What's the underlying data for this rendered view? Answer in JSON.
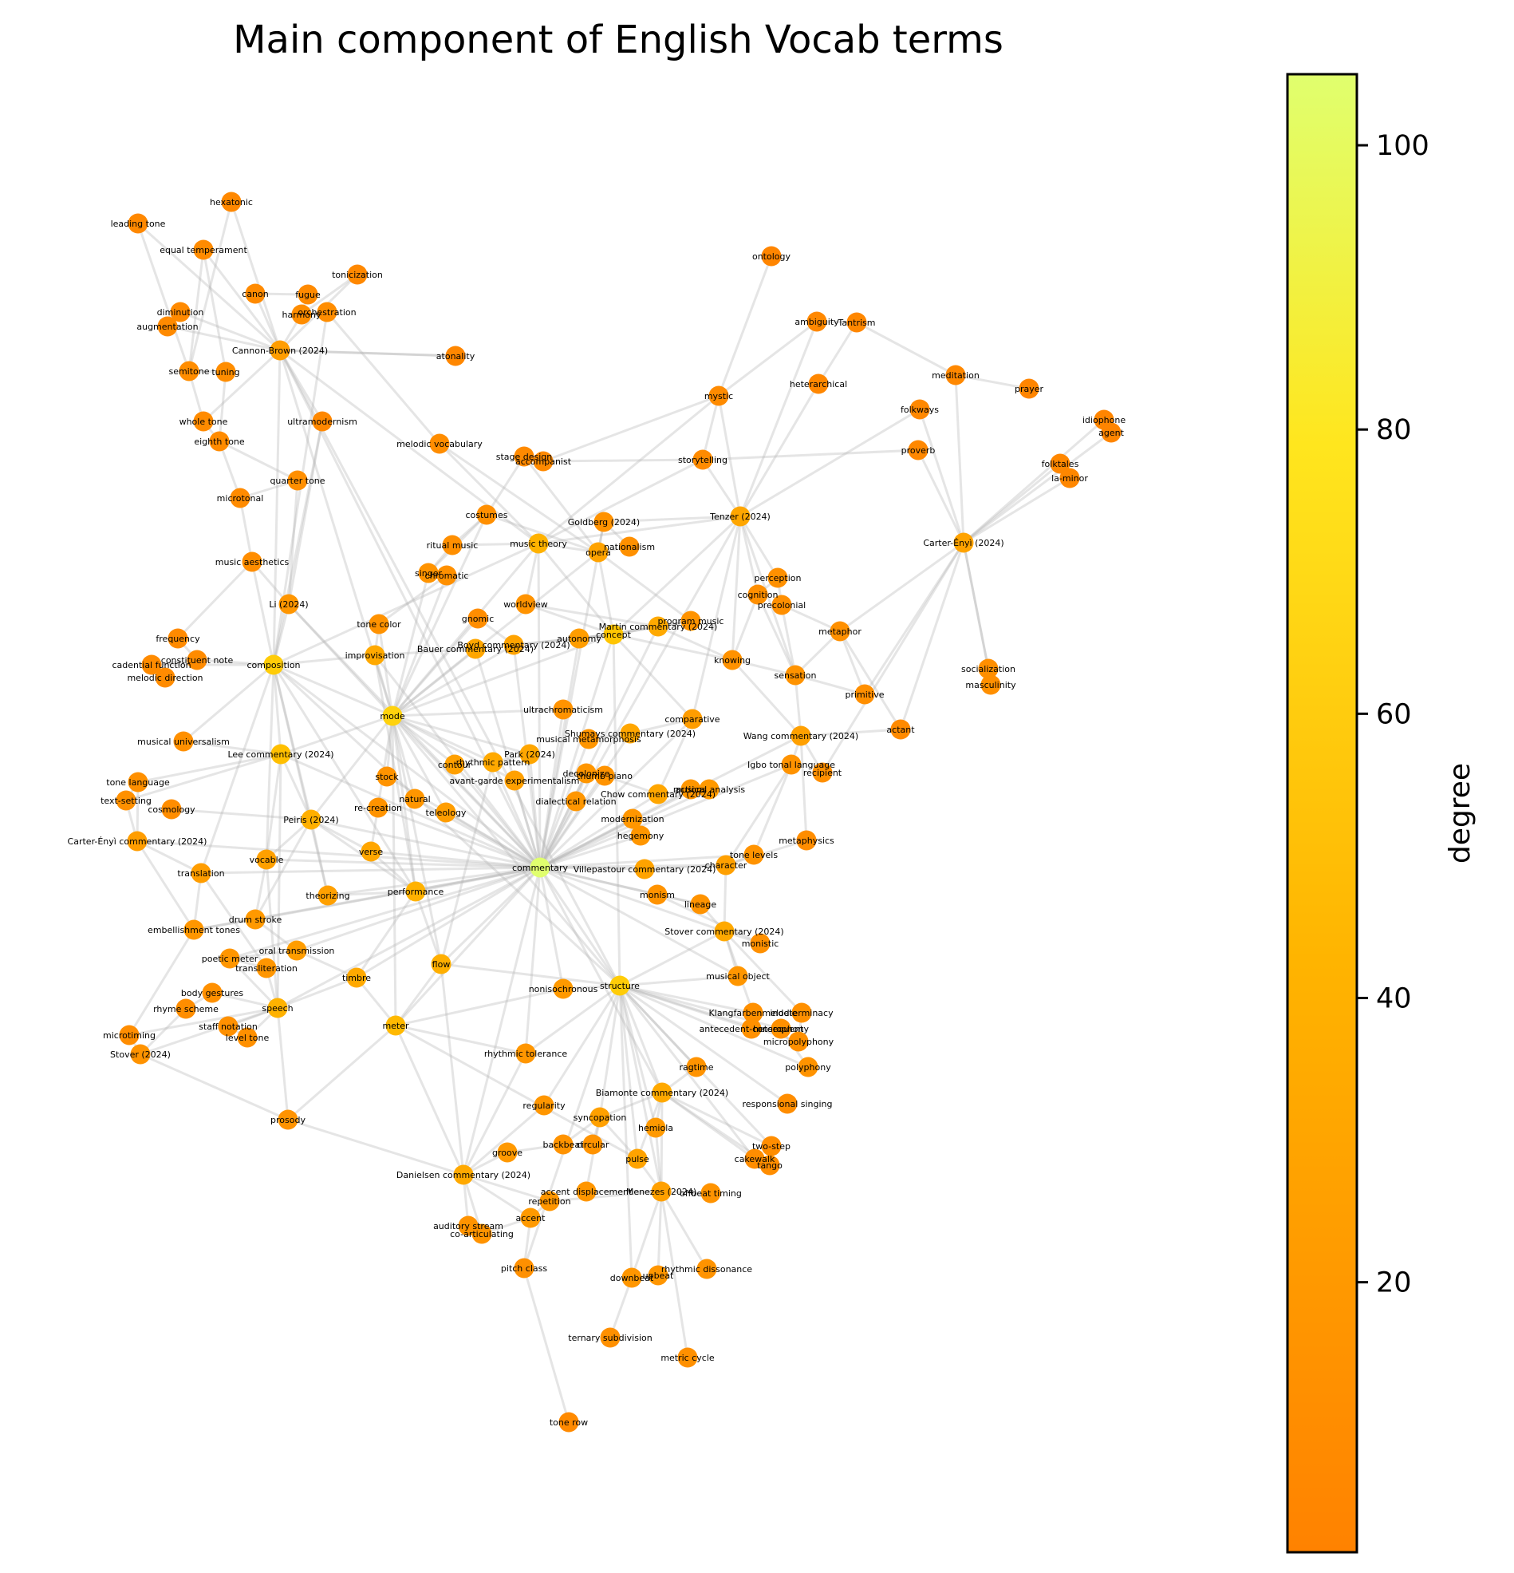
{
  "title": "Main component of English Vocab terms",
  "colorbar": {
    "label": "degree",
    "ticks": [
      20,
      40,
      60,
      80,
      100
    ],
    "range": [
      1,
      105
    ],
    "colors": [
      "#ff8200",
      "#ffc300",
      "#ffe61e",
      "#e0ff6e"
    ]
  },
  "edge_color": "#b4b4b4",
  "nodes": [
    {
      "name": "hexatonic",
      "degree": 5
    },
    {
      "name": "leading tone",
      "degree": 5
    },
    {
      "name": "equal temperament",
      "degree": 7
    },
    {
      "name": "tonicization",
      "degree": 5
    },
    {
      "name": "canon",
      "degree": 6
    },
    {
      "name": "fugue",
      "degree": 6
    },
    {
      "name": "diminution",
      "degree": 6
    },
    {
      "name": "harmony",
      "degree": 8
    },
    {
      "name": "orchestration",
      "degree": 8
    },
    {
      "name": "augmentation",
      "degree": 6
    },
    {
      "name": "Cannon-Brown (2024)",
      "degree": 18
    },
    {
      "name": "atonality",
      "degree": 4
    },
    {
      "name": "semitone",
      "degree": 8
    },
    {
      "name": "tuning",
      "degree": 8
    },
    {
      "name": "ontology",
      "degree": 3
    },
    {
      "name": "ambiguity",
      "degree": 5
    },
    {
      "name": "Tantrism",
      "degree": 4
    },
    {
      "name": "meditation",
      "degree": 5
    },
    {
      "name": "heterarchical",
      "degree": 4
    },
    {
      "name": "prayer",
      "degree": 3
    },
    {
      "name": "mystic",
      "degree": 7
    },
    {
      "name": "folkways",
      "degree": 5
    },
    {
      "name": "idiophone",
      "degree": 3
    },
    {
      "name": "agent",
      "degree": 3
    },
    {
      "name": "whole tone",
      "degree": 7
    },
    {
      "name": "ultramodernism",
      "degree": 5
    },
    {
      "name": "eighth tone",
      "degree": 7
    },
    {
      "name": "melodic vocabulary",
      "degree": 8
    },
    {
      "name": "proverb",
      "degree": 5
    },
    {
      "name": "stage design",
      "degree": 6
    },
    {
      "name": "accompanist",
      "degree": 6
    },
    {
      "name": "storytelling",
      "degree": 7
    },
    {
      "name": "folktales",
      "degree": 4
    },
    {
      "name": "la-minor",
      "degree": 4
    },
    {
      "name": "quarter tone",
      "degree": 9
    },
    {
      "name": "microtonal",
      "degree": 7
    },
    {
      "name": "costumes",
      "degree": 9
    },
    {
      "name": "Goldberg (2024)",
      "degree": 11
    },
    {
      "name": "Tenzer (2024)",
      "degree": 24
    },
    {
      "name": "Carter-Ényì (2024)",
      "degree": 22
    },
    {
      "name": "ritual music",
      "degree": 9
    },
    {
      "name": "music theory",
      "degree": 32
    },
    {
      "name": "opera",
      "degree": 22
    },
    {
      "name": "nationalism",
      "degree": 10
    },
    {
      "name": "music aesthetics",
      "degree": 8
    },
    {
      "name": "singer",
      "degree": 12
    },
    {
      "name": "chromatic",
      "degree": 10
    },
    {
      "name": "perception",
      "degree": 10
    },
    {
      "name": "cognition",
      "degree": 9
    },
    {
      "name": "worldview",
      "degree": 12
    },
    {
      "name": "precolonial",
      "degree": 9
    },
    {
      "name": "Li (2024)",
      "degree": 14
    },
    {
      "name": "gnomic",
      "degree": 8
    },
    {
      "name": "metaphor",
      "degree": 10
    },
    {
      "name": "program music",
      "degree": 12
    },
    {
      "name": "Martin commentary (2024)",
      "degree": 26
    },
    {
      "name": "frequency",
      "degree": 6
    },
    {
      "name": "tone color",
      "degree": 11
    },
    {
      "name": "constituent note",
      "degree": 7
    },
    {
      "name": "Boyd commentary (2024)",
      "degree": 22
    },
    {
      "name": "autonomy",
      "degree": 18
    },
    {
      "name": "concept",
      "degree": 45
    },
    {
      "name": "cadential function",
      "degree": 7
    },
    {
      "name": "composition",
      "degree": 52
    },
    {
      "name": "improvisation",
      "degree": 26
    },
    {
      "name": "Bauer commentary (2024)",
      "degree": 24
    },
    {
      "name": "knowing",
      "degree": 11
    },
    {
      "name": "socialization",
      "degree": 9
    },
    {
      "name": "melodic direction",
      "degree": 7
    },
    {
      "name": "sensation",
      "degree": 12
    },
    {
      "name": "masculinity",
      "degree": 9
    },
    {
      "name": "primitive",
      "degree": 9
    },
    {
      "name": "ultrachromaticism",
      "degree": 12
    },
    {
      "name": "mode",
      "degree": 58
    },
    {
      "name": "comparative",
      "degree": 18
    },
    {
      "name": "actant",
      "degree": 6
    },
    {
      "name": "musical universalism",
      "degree": 10
    },
    {
      "name": "Shumays commentary (2024)",
      "degree": 24
    },
    {
      "name": "musical metamorphosis",
      "degree": 14
    },
    {
      "name": "Wang commentary (2024)",
      "degree": 20
    },
    {
      "name": "Lee commentary (2024)",
      "degree": 40
    },
    {
      "name": "Park (2024)",
      "degree": 24
    },
    {
      "name": "rhythmic pattern",
      "degree": 26
    },
    {
      "name": "Igbo tonal language",
      "degree": 12
    },
    {
      "name": "recipient",
      "degree": 9
    },
    {
      "name": "contour",
      "degree": 20
    },
    {
      "name": "decolonize",
      "degree": 14
    },
    {
      "name": "tone language",
      "degree": 10
    },
    {
      "name": "stock",
      "degree": 12
    },
    {
      "name": "avant-garde experimentalism",
      "degree": 20
    },
    {
      "name": "thumb piano",
      "degree": 12
    },
    {
      "name": "actions",
      "degree": 14
    },
    {
      "name": "musical analysis",
      "degree": 16
    },
    {
      "name": "text-setting",
      "degree": 10
    },
    {
      "name": "natural",
      "degree": 14
    },
    {
      "name": "Chow commentary (2024)",
      "degree": 24
    },
    {
      "name": "cosmology",
      "degree": 8
    },
    {
      "name": "re-creation",
      "degree": 12
    },
    {
      "name": "dialectical relation",
      "degree": 14
    },
    {
      "name": "teleology",
      "degree": 18
    },
    {
      "name": "Peiris (2024)",
      "degree": 30
    },
    {
      "name": "modernization",
      "degree": 14
    },
    {
      "name": "metaphysics",
      "degree": 8
    },
    {
      "name": "Carter-Ényì commentary (2024)",
      "degree": 18
    },
    {
      "name": "hegemony",
      "degree": 14
    },
    {
      "name": "verse",
      "degree": 24
    },
    {
      "name": "vocable",
      "degree": 20
    },
    {
      "name": "tone levels",
      "degree": 12
    },
    {
      "name": "commentary",
      "degree": 105
    },
    {
      "name": "Villepastour commentary (2024)",
      "degree": 22
    },
    {
      "name": "character",
      "degree": 20
    },
    {
      "name": "translation",
      "degree": 18
    },
    {
      "name": "monism",
      "degree": 12
    },
    {
      "name": "theorizing",
      "degree": 20
    },
    {
      "name": "performance",
      "degree": 32
    },
    {
      "name": "lineage",
      "degree": 12
    },
    {
      "name": "drum stroke",
      "degree": 16
    },
    {
      "name": "embellishment tones",
      "degree": 14
    },
    {
      "name": "Stover commentary (2024)",
      "degree": 26
    },
    {
      "name": "monistic",
      "degree": 10
    },
    {
      "name": "oral transmission",
      "degree": 18
    },
    {
      "name": "poetic meter",
      "degree": 14
    },
    {
      "name": "flow",
      "degree": 30
    },
    {
      "name": "transliteration",
      "degree": 14
    },
    {
      "name": "musical object",
      "degree": 14
    },
    {
      "name": "timbre",
      "degree": 26
    },
    {
      "name": "nonisochronous",
      "degree": 16
    },
    {
      "name": "structure",
      "degree": 52
    },
    {
      "name": "body gestures",
      "degree": 10
    },
    {
      "name": "speech",
      "degree": 32
    },
    {
      "name": "Klangfarbenmelodie",
      "degree": 10
    },
    {
      "name": "indeterminacy",
      "degree": 10
    },
    {
      "name": "rhyme scheme",
      "degree": 8
    },
    {
      "name": "staff notation",
      "degree": 10
    },
    {
      "name": "antecedent-consequent",
      "degree": 10
    },
    {
      "name": "heterophony",
      "degree": 10
    },
    {
      "name": "meter",
      "degree": 36
    },
    {
      "name": "microtiming",
      "degree": 8
    },
    {
      "name": "level tone",
      "degree": 10
    },
    {
      "name": "micropolyphony",
      "degree": 10
    },
    {
      "name": "Stover (2024)",
      "degree": 12
    },
    {
      "name": "rhythmic tolerance",
      "degree": 14
    },
    {
      "name": "ragtime",
      "degree": 12
    },
    {
      "name": "polyphony",
      "degree": 12
    },
    {
      "name": "Biamonte commentary (2024)",
      "degree": 26
    },
    {
      "name": "regularity",
      "degree": 14
    },
    {
      "name": "responsional singing",
      "degree": 8
    },
    {
      "name": "prosody",
      "degree": 12
    },
    {
      "name": "syncopation",
      "degree": 20
    },
    {
      "name": "hemiola",
      "degree": 16
    },
    {
      "name": "backbeat",
      "degree": 12
    },
    {
      "name": "circular",
      "degree": 12
    },
    {
      "name": "two-step",
      "degree": 8
    },
    {
      "name": "groove",
      "degree": 16
    },
    {
      "name": "pulse",
      "degree": 22
    },
    {
      "name": "cakewalk",
      "degree": 8
    },
    {
      "name": "tango",
      "degree": 8
    },
    {
      "name": "Danielsen commentary (2024)",
      "degree": 26
    },
    {
      "name": "accent displacement",
      "degree": 14
    },
    {
      "name": "Menezes (2024)",
      "degree": 20
    },
    {
      "name": "offbeat timing",
      "degree": 12
    },
    {
      "name": "repetition",
      "degree": 14
    },
    {
      "name": "accent",
      "degree": 16
    },
    {
      "name": "auditory stream",
      "degree": 12
    },
    {
      "name": "co-articulating",
      "degree": 12
    },
    {
      "name": "pitch class",
      "degree": 10
    },
    {
      "name": "rhythmic dissonance",
      "degree": 12
    },
    {
      "name": "downbeat",
      "degree": 14
    },
    {
      "name": "upbeat",
      "degree": 14
    },
    {
      "name": "ternary subdivision",
      "degree": 10
    },
    {
      "name": "metric cycle",
      "degree": 10
    },
    {
      "name": "tone row",
      "degree": 6
    }
  ]
}
